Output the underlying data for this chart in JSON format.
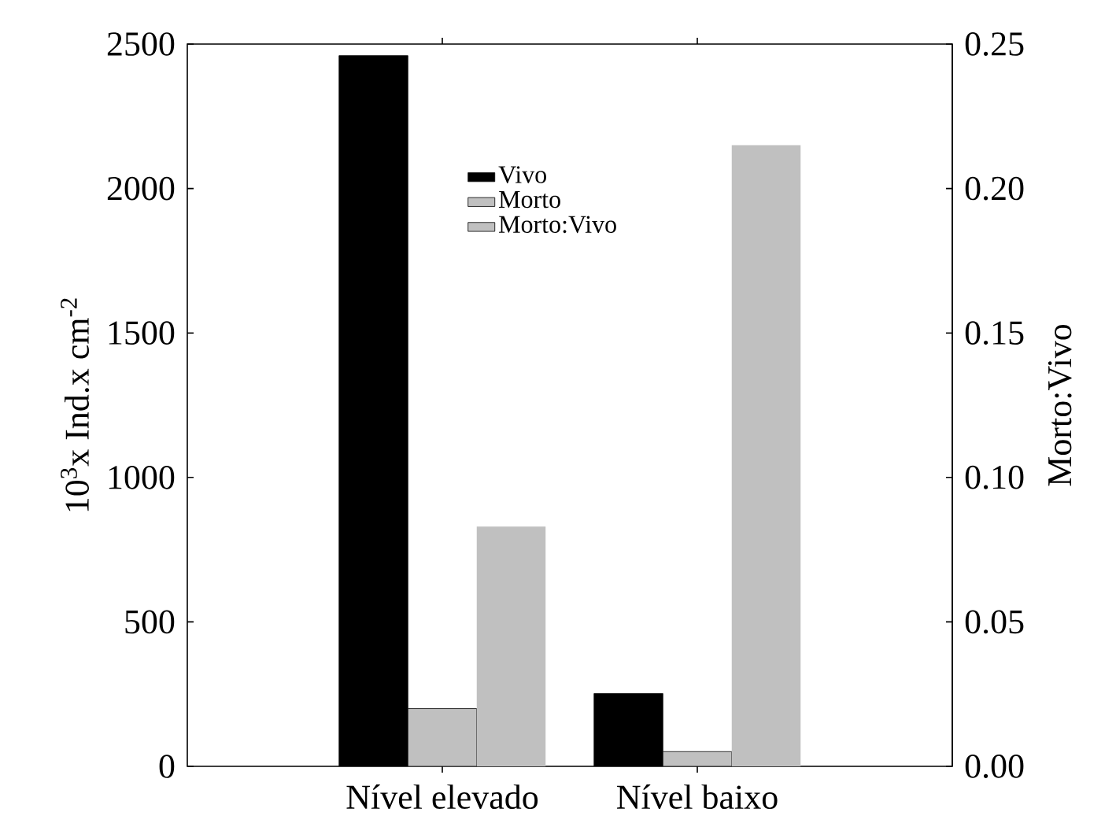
{
  "chart_data": {
    "type": "bar",
    "categories": [
      "Nível elevado",
      "Nível baixo"
    ],
    "ylabel": "10$^{3}$x Ind.x cm$^{-2}$",
    "y2label": "Morto:Vivo",
    "series": [
      {
        "name": "Vivo",
        "color": "#000000",
        "values": [
          2460,
          252
        ]
      },
      {
        "name": "Morto",
        "color": "#c0c0c0",
        "values": [
          200,
          51
        ]
      },
      {
        "name": "Morto:Vivo",
        "color": "#c0c0c0",
        "values": [
          0.083,
          0.215
        ],
        "axis": "y2"
      }
    ],
    "ylim": [
      0,
      2500
    ],
    "yticks": [
      0,
      500,
      1000,
      1500,
      2000,
      2500
    ],
    "y2lim": [
      0,
      0.25
    ],
    "y2ticks": [
      {
        "value": 0,
        "label": "0.00"
      },
      {
        "value": 0.05,
        "label": "0.05"
      },
      {
        "value": 0.1,
        "label": "0.10"
      },
      {
        "value": 0.15,
        "label": "0.15"
      },
      {
        "value": 0.2,
        "label": "0.20"
      },
      {
        "value": 0.25,
        "label": "0.25"
      }
    ],
    "grid": false,
    "legend": "top"
  }
}
